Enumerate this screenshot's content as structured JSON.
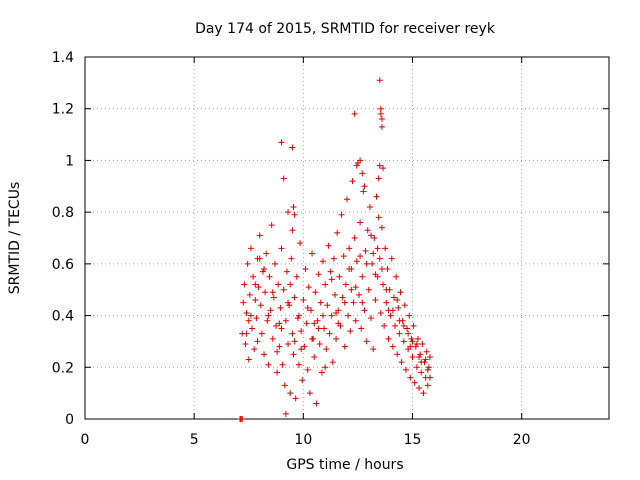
{
  "chart_data": {
    "type": "scatter",
    "title": "Day 174 of 2015, SRMTID for receiver reyk",
    "xlabel": "GPS time / hours",
    "ylabel": "SRMTID / TECUs",
    "xlim": [
      0,
      24
    ],
    "ylim": [
      0,
      1.4
    ],
    "xticks": [
      0,
      5,
      10,
      15,
      20
    ],
    "xtick_labels": [
      "0",
      "5",
      "10",
      "15",
      "20"
    ],
    "yticks": [
      0,
      0.2,
      0.4,
      0.6,
      0.8,
      1,
      1.2,
      1.4
    ],
    "ytick_labels": [
      "0",
      "0.2",
      "0.4",
      "0.6",
      "0.8",
      "1",
      "1.2",
      "1.4"
    ],
    "grid": true,
    "marker": "+",
    "marker_color": "#e00000",
    "series": [
      {
        "name": "SRMTID",
        "points": [
          [
            7.1,
            0.0
          ],
          [
            7.15,
            0.0
          ],
          [
            7.2,
            0.0
          ],
          [
            7.2,
            0.33
          ],
          [
            7.25,
            0.45
          ],
          [
            7.3,
            0.52
          ],
          [
            7.35,
            0.29
          ],
          [
            7.4,
            0.41
          ],
          [
            7.45,
            0.6
          ],
          [
            7.5,
            0.38
          ],
          [
            7.5,
            0.23
          ],
          [
            7.55,
            0.48
          ],
          [
            7.6,
            0.66
          ],
          [
            7.65,
            0.35
          ],
          [
            7.7,
            0.55
          ],
          [
            7.75,
            0.27
          ],
          [
            7.8,
            0.46
          ],
          [
            7.85,
            0.39
          ],
          [
            7.9,
            0.62
          ],
          [
            7.9,
            0.3
          ],
          [
            7.95,
            0.51
          ],
          [
            8.0,
            0.71
          ],
          [
            8.05,
            0.44
          ],
          [
            8.1,
            0.33
          ],
          [
            8.15,
            0.57
          ],
          [
            8.2,
            0.25
          ],
          [
            8.25,
            0.49
          ],
          [
            8.3,
            0.64
          ],
          [
            8.35,
            0.38
          ],
          [
            8.4,
            0.21
          ],
          [
            8.45,
            0.55
          ],
          [
            8.5,
            0.42
          ],
          [
            8.55,
            0.75
          ],
          [
            8.6,
            0.31
          ],
          [
            8.65,
            0.47
          ],
          [
            8.7,
            0.6
          ],
          [
            8.75,
            0.36
          ],
          [
            8.8,
            0.18
          ],
          [
            8.85,
            0.52
          ],
          [
            8.9,
            0.28
          ],
          [
            8.95,
            0.43
          ],
          [
            9.0,
            0.66
          ],
          [
            9.0,
            0.35
          ],
          [
            9.05,
            0.21
          ],
          [
            9.1,
            0.5
          ],
          [
            9.15,
            0.13
          ],
          [
            9.2,
            0.38
          ],
          [
            9.2,
            0.02
          ],
          [
            9.25,
            0.57
          ],
          [
            9.3,
            0.29
          ],
          [
            9.35,
            0.44
          ],
          [
            9.4,
            0.1
          ],
          [
            9.45,
            0.62
          ],
          [
            9.5,
            0.33
          ],
          [
            9.55,
            0.25
          ],
          [
            9.6,
            0.47
          ],
          [
            9.65,
            0.08
          ],
          [
            9.7,
            0.55
          ],
          [
            9.75,
            0.39
          ],
          [
            9.8,
            0.21
          ],
          [
            9.85,
            0.68
          ],
          [
            9.9,
            0.34
          ],
          [
            9.95,
            0.15
          ],
          [
            10.0,
            0.46
          ],
          [
            10.05,
            0.28
          ],
          [
            10.1,
            0.58
          ],
          [
            10.15,
            0.37
          ],
          [
            10.2,
            0.19
          ],
          [
            10.25,
            0.51
          ],
          [
            10.3,
            0.1
          ],
          [
            10.35,
            0.42
          ],
          [
            10.4,
            0.64
          ],
          [
            10.45,
            0.31
          ],
          [
            10.5,
            0.24
          ],
          [
            10.55,
            0.49
          ],
          [
            10.6,
            0.06
          ],
          [
            10.65,
            0.38
          ],
          [
            10.7,
            0.56
          ],
          [
            10.75,
            0.29
          ],
          [
            10.8,
            0.45
          ],
          [
            10.85,
            0.18
          ],
          [
            10.9,
            0.61
          ],
          [
            10.95,
            0.35
          ],
          [
            11.0,
            0.52
          ],
          [
            11.05,
            0.27
          ],
          [
            11.1,
            0.44
          ],
          [
            11.15,
            0.67
          ],
          [
            11.2,
            0.33
          ],
          [
            11.25,
            0.57
          ],
          [
            11.3,
            0.4
          ],
          [
            11.35,
            0.22
          ],
          [
            11.4,
            0.62
          ],
          [
            11.45,
            0.48
          ],
          [
            11.5,
            0.31
          ],
          [
            11.55,
            0.72
          ],
          [
            11.6,
            0.42
          ],
          [
            11.65,
            0.55
          ],
          [
            11.7,
            0.36
          ],
          [
            11.75,
            0.79
          ],
          [
            11.8,
            0.47
          ],
          [
            11.85,
            0.63
          ],
          [
            11.9,
            0.28
          ],
          [
            11.95,
            0.52
          ],
          [
            12.0,
            0.85
          ],
          [
            12.05,
            0.4
          ],
          [
            12.1,
            0.66
          ],
          [
            12.15,
            0.34
          ],
          [
            12.2,
            0.58
          ],
          [
            12.25,
            0.92
          ],
          [
            12.3,
            0.45
          ],
          [
            12.35,
            0.7
          ],
          [
            12.4,
            0.38
          ],
          [
            12.45,
            0.61
          ],
          [
            12.5,
            0.99
          ],
          [
            12.55,
            0.48
          ],
          [
            12.6,
            0.76
          ],
          [
            12.65,
            0.35
          ],
          [
            12.7,
            0.55
          ],
          [
            12.75,
            0.88
          ],
          [
            12.8,
            0.42
          ],
          [
            12.85,
            0.65
          ],
          [
            12.9,
            0.3
          ],
          [
            12.95,
            0.73
          ],
          [
            13.0,
            0.5
          ],
          [
            13.05,
            0.82
          ],
          [
            13.1,
            0.39
          ],
          [
            13.15,
            0.6
          ],
          [
            13.2,
            0.27
          ],
          [
            13.25,
            0.7
          ],
          [
            13.3,
            0.46
          ],
          [
            13.35,
            0.86
          ],
          [
            13.4,
            0.55
          ],
          [
            13.45,
            0.78
          ],
          [
            13.5,
            0.98
          ],
          [
            13.5,
            0.62
          ],
          [
            13.55,
            0.41
          ],
          [
            13.6,
            0.74
          ],
          [
            13.65,
            0.52
          ],
          [
            13.7,
            0.36
          ],
          [
            13.75,
            0.66
          ],
          [
            13.8,
            0.45
          ],
          [
            13.85,
            0.58
          ],
          [
            13.9,
            0.31
          ],
          [
            13.95,
            0.5
          ],
          [
            14.0,
            0.4
          ],
          [
            14.05,
            0.62
          ],
          [
            14.1,
            0.28
          ],
          [
            14.15,
            0.47
          ],
          [
            14.2,
            0.36
          ],
          [
            14.25,
            0.55
          ],
          [
            14.3,
            0.25
          ],
          [
            14.35,
            0.43
          ],
          [
            14.4,
            0.33
          ],
          [
            14.45,
            0.49
          ],
          [
            14.5,
            0.22
          ],
          [
            14.55,
            0.38
          ],
          [
            14.6,
            0.3
          ],
          [
            14.65,
            0.44
          ],
          [
            14.7,
            0.19
          ],
          [
            14.75,
            0.35
          ],
          [
            14.8,
            0.27
          ],
          [
            14.85,
            0.4
          ],
          [
            14.9,
            0.16
          ],
          [
            14.95,
            0.31
          ],
          [
            15.0,
            0.24
          ],
          [
            15.05,
            0.36
          ],
          [
            15.1,
            0.14
          ],
          [
            15.15,
            0.28
          ],
          [
            15.2,
            0.2
          ],
          [
            15.25,
            0.31
          ],
          [
            15.3,
            0.12
          ],
          [
            15.35,
            0.25
          ],
          [
            15.4,
            0.18
          ],
          [
            15.45,
            0.29
          ],
          [
            15.5,
            0.1
          ],
          [
            15.55,
            0.22
          ],
          [
            15.6,
            0.16
          ],
          [
            15.65,
            0.26
          ],
          [
            15.7,
            0.13
          ],
          [
            15.75,
            0.2
          ],
          [
            15.8,
            0.24
          ],
          [
            7.6,
            0.4
          ],
          [
            8.2,
            0.58
          ],
          [
            8.6,
            0.49
          ],
          [
            9.3,
            0.45
          ],
          [
            9.8,
            0.4
          ],
          [
            10.4,
            0.31
          ],
          [
            10.9,
            0.4
          ],
          [
            11.3,
            0.54
          ],
          [
            11.9,
            0.45
          ],
          [
            12.4,
            0.51
          ],
          [
            12.9,
            0.6
          ],
          [
            13.3,
            0.56
          ],
          [
            13.8,
            0.5
          ],
          [
            14.3,
            0.46
          ],
          [
            14.8,
            0.33
          ],
          [
            15.2,
            0.29
          ],
          [
            15.6,
            0.23
          ],
          [
            8.0,
            0.62
          ],
          [
            8.9,
            0.37
          ],
          [
            9.6,
            0.3
          ],
          [
            10.2,
            0.43
          ],
          [
            10.7,
            0.35
          ],
          [
            11.6,
            0.37
          ],
          [
            12.2,
            0.5
          ],
          [
            12.7,
            0.45
          ],
          [
            13.2,
            0.64
          ],
          [
            13.6,
            0.58
          ],
          [
            14.1,
            0.42
          ],
          [
            14.6,
            0.36
          ],
          [
            15.0,
            0.3
          ],
          [
            15.4,
            0.22
          ],
          [
            15.7,
            0.19
          ],
          [
            7.4,
            0.33
          ],
          [
            7.8,
            0.52
          ],
          [
            8.4,
            0.4
          ],
          [
            8.8,
            0.26
          ],
          [
            9.4,
            0.52
          ],
          [
            9.9,
            0.27
          ],
          [
            10.5,
            0.37
          ],
          [
            11.0,
            0.2
          ],
          [
            11.5,
            0.41
          ],
          [
            12.1,
            0.58
          ],
          [
            12.6,
            0.63
          ],
          [
            13.1,
            0.71
          ],
          [
            13.4,
            0.66
          ],
          [
            13.9,
            0.42
          ],
          [
            14.4,
            0.38
          ],
          [
            14.9,
            0.28
          ],
          [
            15.3,
            0.24
          ],
          [
            15.8,
            0.16
          ],
          [
            9.0,
            1.07
          ],
          [
            9.1,
            0.93
          ],
          [
            9.3,
            0.8
          ],
          [
            9.5,
            1.05
          ],
          [
            9.55,
            0.82
          ],
          [
            9.6,
            0.79
          ],
          [
            9.5,
            0.73
          ],
          [
            12.35,
            1.18
          ],
          [
            12.6,
            1.0
          ],
          [
            12.7,
            0.95
          ],
          [
            12.45,
            0.98
          ],
          [
            12.8,
            0.9
          ],
          [
            13.5,
            1.31
          ],
          [
            13.55,
            1.2
          ],
          [
            13.55,
            1.18
          ],
          [
            13.6,
            1.16
          ],
          [
            13.6,
            1.13
          ],
          [
            13.65,
            0.97
          ],
          [
            13.45,
            0.93
          ]
        ]
      }
    ]
  }
}
